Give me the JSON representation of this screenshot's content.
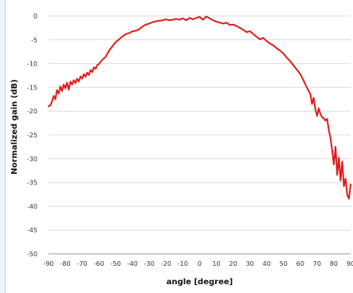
{
  "chart_data": {
    "type": "line",
    "title": "",
    "xlabel": "angle [degree]",
    "ylabel": "Normalized gain (dB)",
    "xlim": [
      -90,
      90
    ],
    "ylim": [
      -50,
      0
    ],
    "xticks": [
      -90,
      -80,
      -70,
      -60,
      -50,
      -40,
      -30,
      -20,
      -10,
      0,
      10,
      20,
      30,
      40,
      50,
      60,
      70,
      80,
      90
    ],
    "xtick_labels": [
      "-90",
      "-80",
      "-70",
      "-60",
      "-50",
      "-40",
      "-30",
      "-20",
      "-10",
      "0",
      "10",
      "20",
      "30",
      "40",
      "50",
      "60",
      "70",
      "80",
      "90"
    ],
    "yticks": [
      0,
      -5,
      -10,
      -15,
      -20,
      -25,
      -30,
      -35,
      -40,
      -45,
      -50
    ],
    "ytick_labels": [
      "0",
      "-5",
      "-10",
      "-15",
      "-20",
      "-25",
      "-30",
      "-35",
      "-40",
      "-45",
      "-50"
    ],
    "grid": "horizontal",
    "line_color": "#e31a1c",
    "series": [
      {
        "x": [
          -90,
          -89,
          -88,
          -87,
          -86,
          -85,
          -84,
          -83,
          -82,
          -81,
          -80,
          -79,
          -78,
          -77,
          -76,
          -75,
          -74,
          -73,
          -72,
          -71,
          -70,
          -69,
          -68,
          -67,
          -66,
          -65,
          -64,
          -63,
          -62,
          -61,
          -60,
          -58,
          -56,
          -54,
          -52,
          -50,
          -48,
          -46,
          -44,
          -42,
          -40,
          -38,
          -36,
          -34,
          -32,
          -30,
          -28,
          -26,
          -24,
          -22,
          -20,
          -18,
          -16,
          -14,
          -12,
          -10,
          -8,
          -6,
          -4,
          -2,
          0,
          2,
          4,
          6,
          8,
          10,
          12,
          14,
          16,
          18,
          20,
          22,
          24,
          26,
          28,
          30,
          32,
          34,
          36,
          38,
          40,
          42,
          44,
          46,
          48,
          50,
          52,
          54,
          56,
          58,
          60,
          62,
          64,
          66,
          67,
          68,
          69,
          70,
          71,
          72,
          73,
          74,
          75,
          76,
          77,
          78,
          79,
          80,
          81,
          82,
          83,
          84,
          85,
          86,
          87,
          88,
          89,
          90
        ],
        "y": [
          -19.0,
          -18.8,
          -18.0,
          -16.8,
          -17.5,
          -15.6,
          -16.3,
          -14.8,
          -15.8,
          -14.4,
          -15.2,
          -14.0,
          -15.5,
          -13.8,
          -14.4,
          -13.5,
          -14.1,
          -13.2,
          -13.8,
          -12.7,
          -13.2,
          -12.2,
          -12.8,
          -11.9,
          -12.4,
          -11.4,
          -11.8,
          -10.8,
          -11.1,
          -10.3,
          -10.1,
          -9.2,
          -8.6,
          -7.3,
          -6.4,
          -5.5,
          -4.9,
          -4.3,
          -3.8,
          -3.6,
          -3.2,
          -3.1,
          -2.8,
          -2.2,
          -1.8,
          -1.6,
          -1.3,
          -1.1,
          -1.0,
          -0.9,
          -0.7,
          -0.9,
          -0.8,
          -0.6,
          -0.8,
          -0.5,
          -0.9,
          -0.4,
          -0.7,
          -0.4,
          -0.2,
          -0.8,
          -0.1,
          -0.5,
          -0.9,
          -1.2,
          -1.4,
          -1.6,
          -1.4,
          -1.9,
          -1.8,
          -2.1,
          -2.5,
          -2.9,
          -3.4,
          -3.2,
          -3.8,
          -4.4,
          -4.9,
          -4.6,
          -5.3,
          -5.8,
          -6.2,
          -6.8,
          -7.3,
          -7.9,
          -8.8,
          -9.5,
          -10.4,
          -11.3,
          -12.2,
          -13.6,
          -15.1,
          -16.4,
          -18.5,
          -17.2,
          -19.6,
          -21.0,
          -19.4,
          -20.6,
          -21.3,
          -21.5,
          -22.0,
          -21.6,
          -24.0,
          -25.6,
          -28.3,
          -31.2,
          -27.5,
          -33.4,
          -29.8,
          -34.6,
          -30.6,
          -35.8,
          -34.2,
          -37.6,
          -38.4,
          -35.4
        ]
      }
    ]
  }
}
